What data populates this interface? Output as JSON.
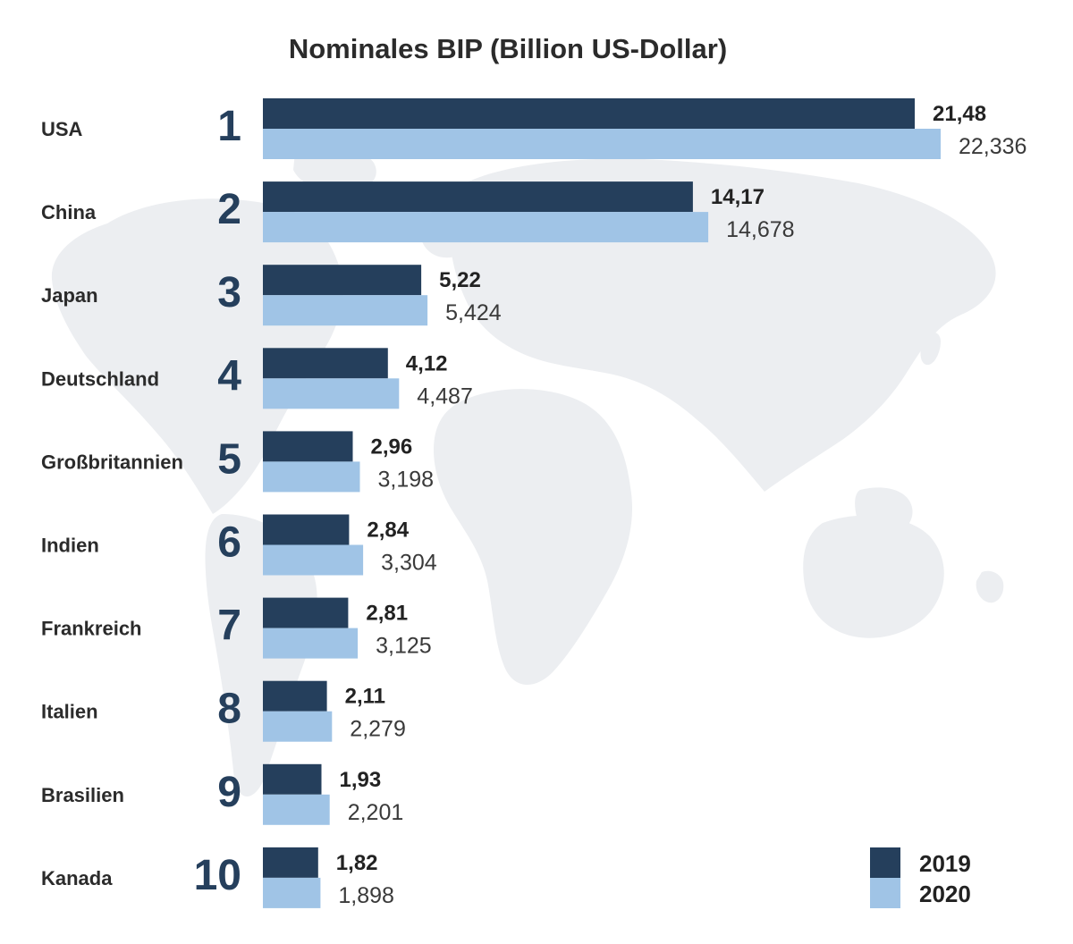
{
  "colors": {
    "series_2019": "#253f5c",
    "series_2020": "#a0c4e6",
    "map": "#eceef1",
    "rank": "#253f5c"
  },
  "chart_data": {
    "type": "bar",
    "orientation": "horizontal",
    "title": "Nominales BIP (Billion US-Dollar)",
    "categories": [
      "USA",
      "China",
      "Japan",
      "Deutschland",
      "Großbritannien",
      "Indien",
      "Frankreich",
      "Italien",
      "Brasilien",
      "Kanada"
    ],
    "ranks": [
      "1",
      "2",
      "3",
      "4",
      "5",
      "6",
      "7",
      "8",
      "9",
      "10"
    ],
    "series": [
      {
        "name": "2019",
        "values": [
          21.48,
          14.17,
          5.22,
          4.12,
          2.96,
          2.84,
          2.81,
          2.11,
          1.93,
          1.82
        ],
        "labels": [
          "21,48",
          "14,17",
          "5,22",
          "4,12",
          "2,96",
          "2,84",
          "2,81",
          "2,11",
          "1,93",
          "1,82"
        ]
      },
      {
        "name": "2020",
        "values": [
          22.336,
          14.678,
          5.424,
          4.487,
          3.198,
          3.304,
          3.125,
          2.279,
          2.201,
          1.898
        ],
        "labels": [
          "22,336",
          "14,678",
          "5,424",
          "4,487",
          "3,198",
          "3,304",
          "3,125",
          "2,279",
          "2,201",
          "1,898"
        ]
      }
    ],
    "legend": [
      "2019",
      "2020"
    ],
    "legend_position": "bottom-right",
    "grid": false,
    "xlim": [
      0,
      22.336
    ]
  }
}
